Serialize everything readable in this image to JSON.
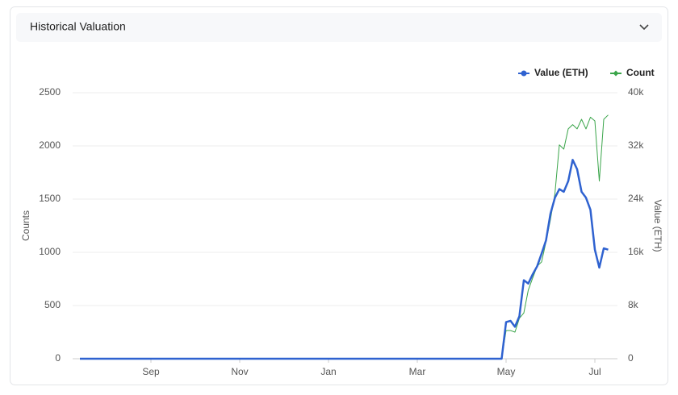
{
  "chart_data": {
    "type": "line",
    "title": "Historical Valuation",
    "y_label": "Counts",
    "y2_label": "Value (ETH)",
    "categories": [
      null,
      null,
      null,
      null,
      null,
      null,
      null,
      null,
      null,
      null,
      null,
      null,
      null,
      null,
      null,
      null,
      "Sep",
      null,
      null,
      null,
      null,
      null,
      null,
      null,
      null,
      null,
      null,
      null,
      null,
      null,
      null,
      null,
      null,
      null,
      null,
      null,
      "Nov",
      null,
      null,
      null,
      null,
      null,
      null,
      null,
      null,
      null,
      null,
      null,
      null,
      null,
      null,
      null,
      null,
      null,
      null,
      null,
      "Jan",
      null,
      null,
      null,
      null,
      null,
      null,
      null,
      null,
      null,
      null,
      null,
      null,
      null,
      null,
      null,
      null,
      null,
      null,
      null,
      "Mar",
      null,
      null,
      null,
      null,
      null,
      null,
      null,
      null,
      null,
      null,
      null,
      null,
      null,
      null,
      null,
      null,
      null,
      null,
      null,
      "May",
      null,
      null,
      null,
      null,
      null,
      null,
      null,
      null,
      null,
      null,
      null,
      null,
      null,
      null,
      null,
      null,
      null,
      null,
      null,
      "Jul",
      null,
      null,
      null
    ],
    "series": [
      {
        "name": "Value (ETH)",
        "color": "#2f62d0",
        "axis": "y2",
        "values": [
          0,
          0,
          0,
          0,
          0,
          0,
          0,
          0,
          0,
          0,
          0,
          0,
          0,
          0,
          0,
          0,
          0,
          0,
          0,
          0,
          0,
          0,
          0,
          0,
          0,
          0,
          0,
          0,
          0,
          0,
          0,
          0,
          0,
          0,
          0,
          0,
          0,
          0,
          0,
          0,
          0,
          0,
          0,
          0,
          0,
          0,
          0,
          0,
          0,
          0,
          0,
          0,
          0,
          0,
          0,
          0,
          0,
          0,
          0,
          0,
          0,
          0,
          0,
          0,
          0,
          0,
          0,
          0,
          0,
          0,
          0,
          0,
          0,
          0,
          0,
          0,
          0,
          0,
          0,
          0,
          0,
          0,
          0,
          0,
          0,
          0,
          0,
          0,
          0,
          0,
          0,
          0,
          0,
          0,
          0,
          0,
          5500,
          5700,
          4800,
          6400,
          11800,
          11300,
          12700,
          13900,
          15800,
          17800,
          21800,
          24200,
          25500,
          25100,
          26700,
          29900,
          28500,
          25100,
          24200,
          22400,
          16400,
          13700,
          16600,
          16400
        ]
      },
      {
        "name": "Count",
        "color": "#3aa54a",
        "values": [
          0,
          0,
          0,
          0,
          0,
          0,
          0,
          0,
          0,
          0,
          0,
          0,
          0,
          0,
          0,
          0,
          0,
          0,
          0,
          0,
          0,
          0,
          0,
          0,
          0,
          0,
          0,
          0,
          0,
          0,
          0,
          0,
          0,
          0,
          0,
          0,
          0,
          0,
          0,
          0,
          0,
          0,
          0,
          0,
          0,
          0,
          0,
          0,
          0,
          0,
          0,
          0,
          0,
          0,
          0,
          0,
          0,
          0,
          0,
          0,
          0,
          0,
          0,
          0,
          0,
          0,
          0,
          0,
          0,
          0,
          0,
          0,
          0,
          0,
          0,
          0,
          0,
          0,
          0,
          0,
          0,
          0,
          0,
          0,
          0,
          0,
          0,
          0,
          0,
          0,
          0,
          0,
          0,
          0,
          0,
          0,
          265,
          265,
          250,
          380,
          430,
          645,
          760,
          870,
          910,
          1100,
          1310,
          1550,
          2010,
          1970,
          2160,
          2200,
          2160,
          2250,
          2160,
          2270,
          2235,
          1670,
          2250,
          2290
        ]
      }
    ],
    "ylim": [
      0,
      2500
    ],
    "yticks": [
      0,
      500,
      1000,
      1500,
      2000,
      2500
    ],
    "y2lim": [
      0,
      40000
    ],
    "y2ticks": [
      0,
      {
        "value": 8000,
        "label": "8k"
      },
      {
        "value": 16000,
        "label": "16k"
      },
      {
        "value": 24000,
        "label": "24k"
      },
      {
        "value": 32000,
        "label": "32k"
      },
      {
        "value": 40000,
        "label": "40k"
      }
    ],
    "grid": true,
    "legend": "top-right"
  }
}
